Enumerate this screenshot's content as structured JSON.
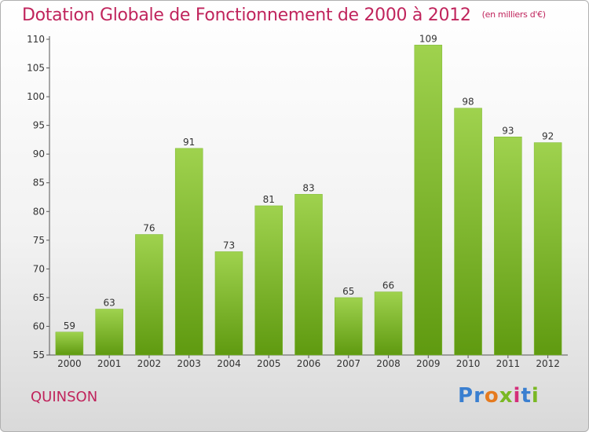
{
  "title": "Dotation Globale de Fonctionnement de 2000 à 2012",
  "unit_note": "(en milliers d'€)",
  "commune": "QUINSON",
  "logo": {
    "text": "Proxiti",
    "colors": [
      "#3a7fd0",
      "#3a7fd0",
      "#e57a1f",
      "#7ab824",
      "#d42e7a",
      "#3a7fd0",
      "#7ab824"
    ]
  },
  "colors": {
    "bar_light": "#9fd24e",
    "bar_dark": "#5f9a10",
    "axis": "#555555",
    "grid": "#cccccc",
    "accent": "#c0245c"
  },
  "chart_data": {
    "type": "bar",
    "title": "Dotation Globale de Fonctionnement de 2000 à 2012",
    "subtitle": "(en milliers d'€)",
    "xlabel": "",
    "ylabel": "",
    "categories": [
      "2000",
      "2001",
      "2002",
      "2003",
      "2004",
      "2005",
      "2006",
      "2007",
      "2008",
      "2009",
      "2010",
      "2011",
      "2012"
    ],
    "values": [
      59,
      63,
      76,
      91,
      73,
      81,
      83,
      65,
      66,
      109,
      98,
      93,
      92
    ],
    "ylim": [
      55,
      110
    ],
    "yticks": [
      55,
      60,
      65,
      70,
      75,
      80,
      85,
      90,
      95,
      100,
      105,
      110
    ],
    "grid": false,
    "legend": "none"
  }
}
